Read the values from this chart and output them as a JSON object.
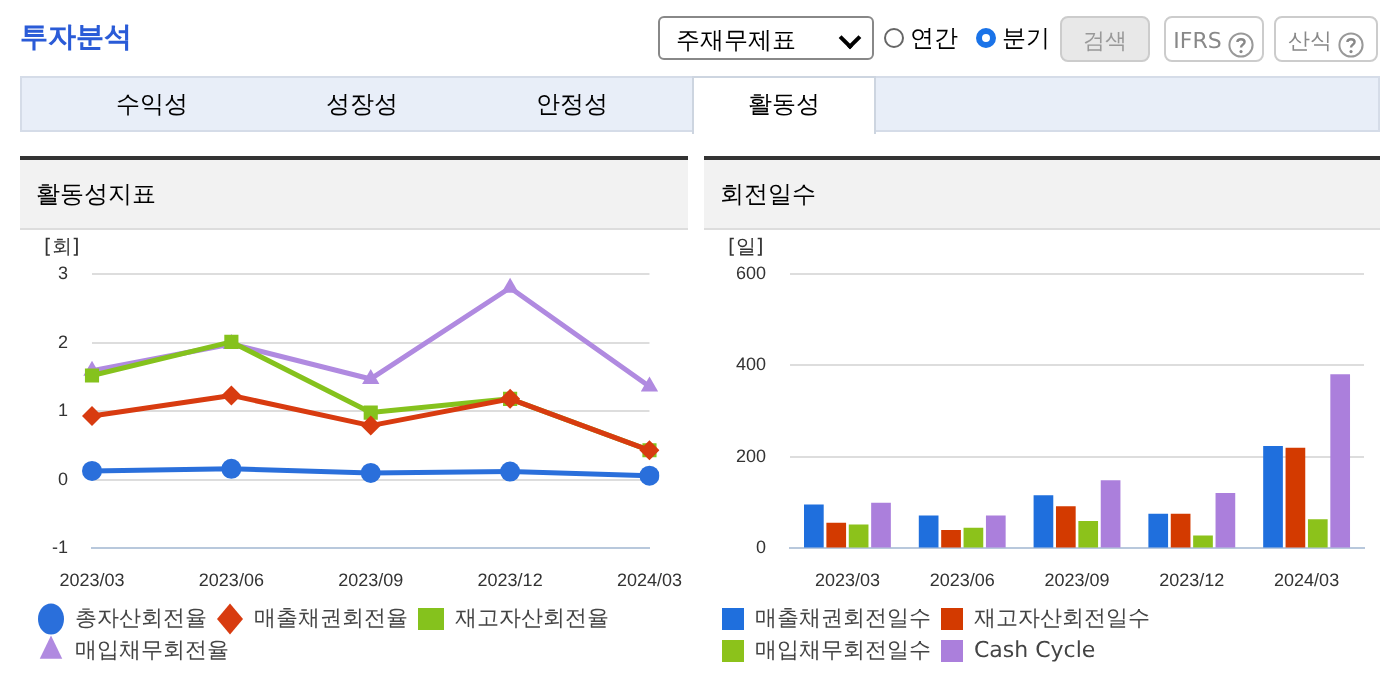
{
  "chart_data": [
    {
      "type": "line",
      "title": "활동성지표",
      "ylabel": "[회]",
      "annotations": [
        "투자분석",
        "주재무제표",
        "연간",
        "분기",
        "검색",
        "IFRS",
        "산식",
        "수익성",
        "성장성",
        "안정성",
        "활동성"
      ],
      "categories": [
        "2023/03",
        "2023/06",
        "2023/09",
        "2023/12",
        "2024/03"
      ],
      "series": [
        {
          "name": "총자산회전율",
          "color": "#2a6fdb",
          "marker": "circle",
          "values": [
            0.13,
            0.16,
            0.1,
            0.12,
            0.06
          ]
        },
        {
          "name": "매출채권회전율",
          "color": "#d83b10",
          "marker": "diamond",
          "values": [
            0.93,
            1.23,
            0.79,
            1.18,
            0.43
          ]
        },
        {
          "name": "재고자산회전율",
          "color": "#85c21d",
          "marker": "square",
          "values": [
            1.52,
            2.01,
            0.98,
            1.18,
            0.43
          ]
        },
        {
          "name": "매입채무회전율",
          "color": "#b08ae0",
          "marker": "triangle",
          "values": [
            1.59,
            1.98,
            1.47,
            2.8,
            1.36
          ]
        }
      ],
      "ylim": [
        -1,
        3
      ],
      "yticks": [
        -1,
        0,
        1,
        2,
        3
      ],
      "grid": "y",
      "legend": "bottom"
    },
    {
      "type": "bar",
      "title": "회전일수",
      "ylabel": "[일]",
      "categories": [
        "2023/03",
        "2023/06",
        "2023/09",
        "2023/12",
        "2024/03"
      ],
      "series": [
        {
          "name": "매출채권회전일수",
          "color": "#1f6fdd",
          "values": [
            96,
            72,
            116,
            76,
            224
          ]
        },
        {
          "name": "재고자산회전일수",
          "color": "#d33a00",
          "values": [
            56,
            40,
            92,
            76,
            220
          ]
        },
        {
          "name": "매입채무회전일수",
          "color": "#8cc21b",
          "values": [
            52,
            45,
            60,
            28,
            64
          ]
        },
        {
          "name": "Cash Cycle",
          "color": "#ab7fdc",
          "values": [
            100,
            72,
            149,
            121,
            381
          ]
        }
      ],
      "ylim": [
        0,
        600
      ],
      "yticks": [
        0,
        200,
        400,
        600
      ],
      "grid": "y",
      "legend": "bottom"
    }
  ]
}
